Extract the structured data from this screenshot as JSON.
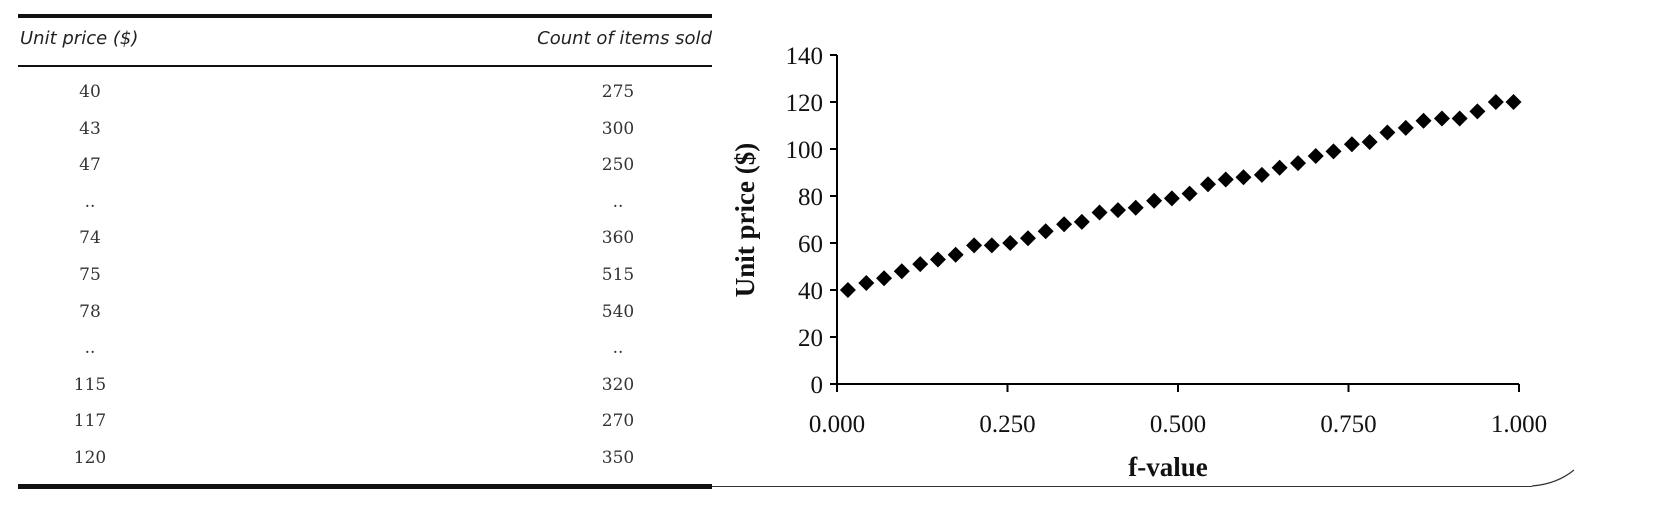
{
  "table": {
    "headers": [
      "Unit price ($)",
      "Count of items sold"
    ],
    "rows": [
      [
        "40",
        "275"
      ],
      [
        "43",
        "300"
      ],
      [
        "47",
        "250"
      ],
      [
        "..",
        ".."
      ],
      [
        "74",
        "360"
      ],
      [
        "75",
        "515"
      ],
      [
        "78",
        "540"
      ],
      [
        "..",
        ".."
      ],
      [
        "115",
        "320"
      ],
      [
        "117",
        "270"
      ],
      [
        "120",
        "350"
      ]
    ]
  },
  "chart_data": {
    "type": "scatter",
    "xlabel": "f-value",
    "ylabel": "Unit price ($)",
    "xlim": [
      0,
      1
    ],
    "ylim": [
      0,
      140
    ],
    "xticks": [
      "0.000",
      "0.250",
      "0.500",
      "0.750",
      "1.000"
    ],
    "yticks": [
      "0",
      "20",
      "40",
      "60",
      "80",
      "100",
      "120",
      "140"
    ],
    "grid": false,
    "marker": "diamond",
    "color": "#000000",
    "series": [
      {
        "x": [
          0.016,
          0.043,
          0.069,
          0.095,
          0.122,
          0.148,
          0.174,
          0.201,
          0.227,
          0.254,
          0.28,
          0.306,
          0.333,
          0.359,
          0.385,
          0.412,
          0.438,
          0.465,
          0.491,
          0.517,
          0.544,
          0.57,
          0.596,
          0.623,
          0.649,
          0.676,
          0.702,
          0.728,
          0.755,
          0.781,
          0.807,
          0.834,
          0.86,
          0.887,
          0.913,
          0.939,
          0.966,
          0.992
        ],
        "y": [
          40,
          43,
          45,
          48,
          51,
          53,
          55,
          59,
          59,
          60,
          62,
          65,
          68,
          69,
          73,
          74,
          75,
          78,
          79,
          81,
          85,
          87,
          88,
          89,
          92,
          94,
          97,
          99,
          102,
          103,
          107,
          109,
          112,
          113,
          113,
          116,
          120,
          120
        ]
      }
    ]
  }
}
